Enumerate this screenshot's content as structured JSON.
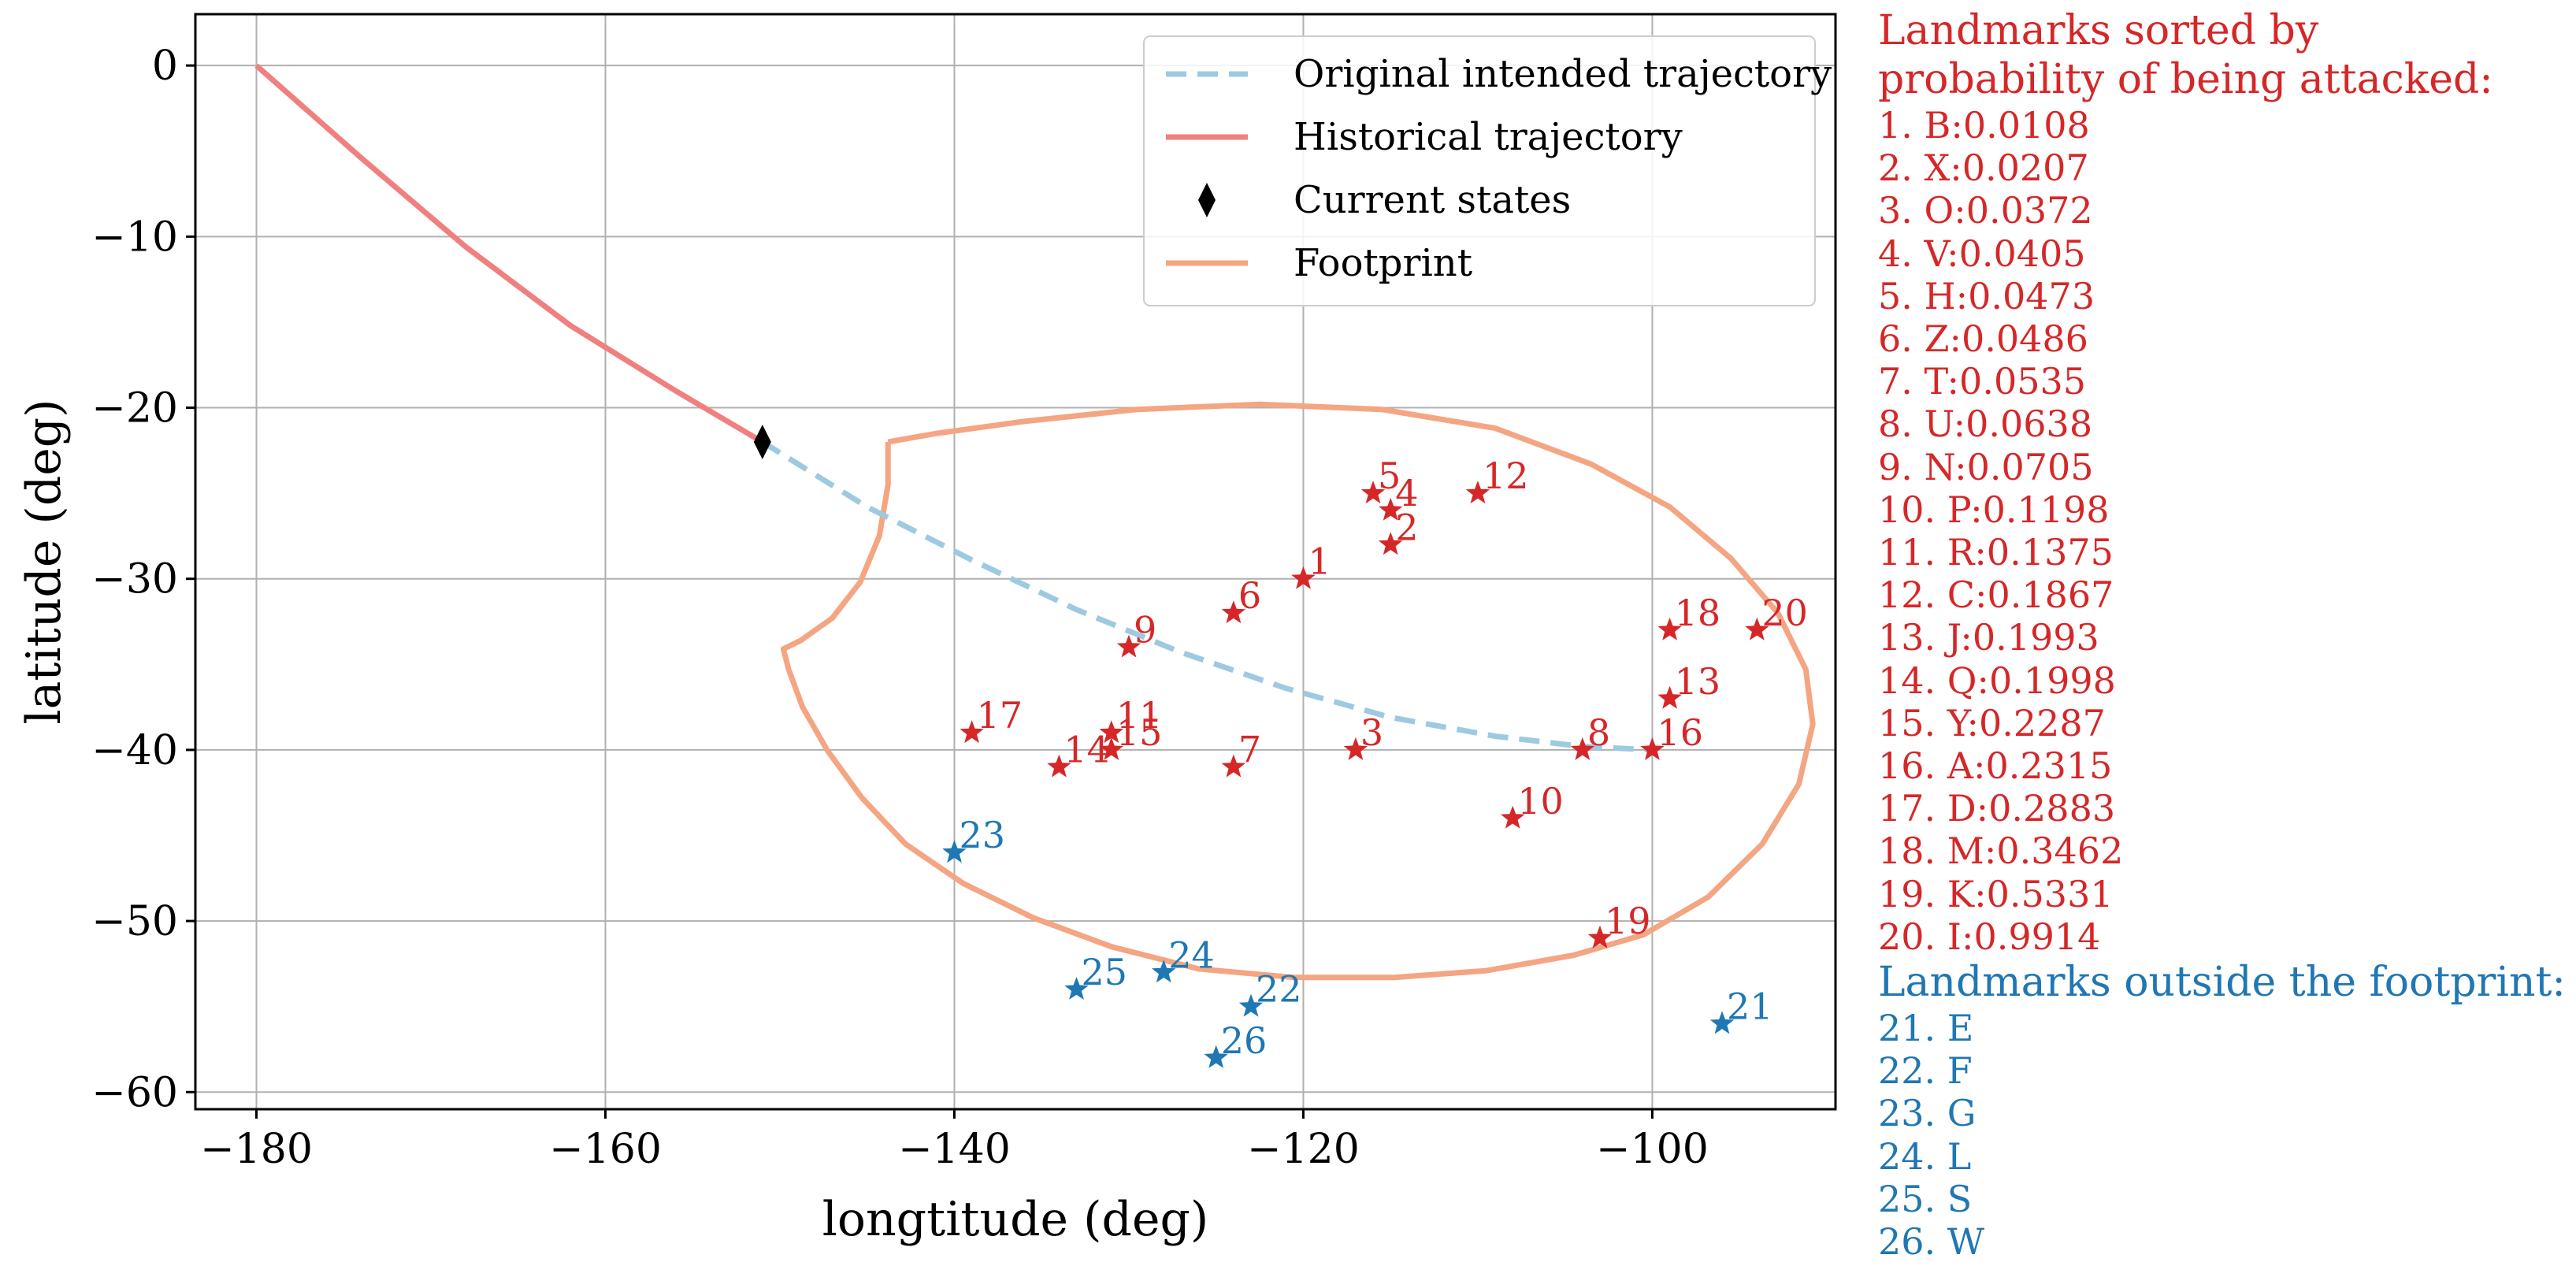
{
  "colors": {
    "inside": "#d62728",
    "outside": "#1f77b4",
    "intended": "#9ecae1",
    "historical": "#f08080",
    "footprint": "#f4a582",
    "current": "#000000",
    "grid": "#b0b0b0"
  },
  "chart_data": {
    "type": "scatter",
    "xlabel": "longtitude (deg)",
    "ylabel": "latitude (deg)",
    "xlim": [
      -183.5,
      -89.5
    ],
    "ylim": [
      -61,
      3
    ],
    "xticks": [
      -180,
      -160,
      -140,
      -120,
      -100
    ],
    "yticks": [
      0,
      -10,
      -20,
      -30,
      -40,
      -50,
      -60
    ],
    "grid": true,
    "legend_position": "top-right",
    "legend": [
      {
        "label": "Original intended trajectory",
        "style": "dashed-line",
        "color": "#9ecae1"
      },
      {
        "label": "Historical trajectory",
        "style": "solid-line",
        "color": "#f08080"
      },
      {
        "label": "Current states",
        "style": "diamond-marker",
        "color": "#000000"
      },
      {
        "label": "Footprint",
        "style": "solid-line",
        "color": "#f4a582"
      }
    ],
    "historical_trajectory": [
      [
        -180,
        0
      ],
      [
        -174,
        -5.4
      ],
      [
        -168,
        -10.6
      ],
      [
        -162,
        -15.2
      ],
      [
        -156,
        -19.0
      ],
      [
        -151,
        -22.0
      ]
    ],
    "intended_trajectory": [
      [
        -151,
        -22.0
      ],
      [
        -145,
        -25.8
      ],
      [
        -139,
        -28.9
      ],
      [
        -133,
        -31.8
      ],
      [
        -127,
        -34.3
      ],
      [
        -121,
        -36.4
      ],
      [
        -115,
        -38.1
      ],
      [
        -109,
        -39.2
      ],
      [
        -104,
        -39.8
      ],
      [
        -100,
        -40.0
      ]
    ],
    "current_state": [
      -151,
      -22.0
    ],
    "footprint": [
      [
        -143.8,
        -22.0
      ],
      [
        -143.8,
        -24.5
      ],
      [
        -144.3,
        -27.5
      ],
      [
        -145.4,
        -30.2
      ],
      [
        -147.0,
        -32.3
      ],
      [
        -148.8,
        -33.6
      ],
      [
        -149.8,
        -34.1
      ],
      [
        -149.5,
        -35.3
      ],
      [
        -148.7,
        -37.5
      ],
      [
        -147.3,
        -40.0
      ],
      [
        -145.3,
        -42.8
      ],
      [
        -142.8,
        -45.5
      ],
      [
        -139.5,
        -47.8
      ],
      [
        -135.5,
        -49.8
      ],
      [
        -131.0,
        -51.5
      ],
      [
        -126.0,
        -52.8
      ],
      [
        -120.5,
        -53.3
      ],
      [
        -114.8,
        -53.3
      ],
      [
        -109.5,
        -52.9
      ],
      [
        -104.5,
        -52.0
      ],
      [
        -100.5,
        -50.8
      ],
      [
        -96.8,
        -48.6
      ],
      [
        -93.7,
        -45.5
      ],
      [
        -91.6,
        -42.0
      ],
      [
        -90.8,
        -38.5
      ],
      [
        -91.2,
        -35.3
      ],
      [
        -92.8,
        -32.0
      ],
      [
        -95.5,
        -28.8
      ],
      [
        -99.0,
        -25.8
      ],
      [
        -103.5,
        -23.3
      ],
      [
        -109.0,
        -21.2
      ],
      [
        -115.5,
        -20.1
      ],
      [
        -122.5,
        -19.8
      ],
      [
        -129.5,
        -20.1
      ],
      [
        -136.0,
        -20.8
      ],
      [
        -141.0,
        -21.5
      ],
      [
        -143.8,
        -22.0
      ]
    ],
    "landmarks": [
      {
        "n": 1,
        "x": -120.0,
        "y": -30.0,
        "group": "inside"
      },
      {
        "n": 2,
        "x": -115.0,
        "y": -28.0,
        "group": "inside"
      },
      {
        "n": 3,
        "x": -117.0,
        "y": -40.0,
        "group": "inside"
      },
      {
        "n": 4,
        "x": -115.0,
        "y": -26.0,
        "group": "inside"
      },
      {
        "n": 5,
        "x": -116.0,
        "y": -25.0,
        "group": "inside"
      },
      {
        "n": 6,
        "x": -124.0,
        "y": -32.0,
        "group": "inside"
      },
      {
        "n": 7,
        "x": -124.0,
        "y": -41.0,
        "group": "inside"
      },
      {
        "n": 8,
        "x": -104.0,
        "y": -40.0,
        "group": "inside"
      },
      {
        "n": 9,
        "x": -130.0,
        "y": -34.0,
        "group": "inside"
      },
      {
        "n": 10,
        "x": -108.0,
        "y": -44.0,
        "group": "inside"
      },
      {
        "n": 11,
        "x": -131.0,
        "y": -39.0,
        "group": "inside"
      },
      {
        "n": 12,
        "x": -110.0,
        "y": -25.0,
        "group": "inside"
      },
      {
        "n": 13,
        "x": -99.0,
        "y": -37.0,
        "group": "inside"
      },
      {
        "n": 14,
        "x": -134.0,
        "y": -41.0,
        "group": "inside"
      },
      {
        "n": 15,
        "x": -131.0,
        "y": -40.0,
        "group": "inside"
      },
      {
        "n": 16,
        "x": -100.0,
        "y": -40.0,
        "group": "inside"
      },
      {
        "n": 17,
        "x": -139.0,
        "y": -39.0,
        "group": "inside"
      },
      {
        "n": 18,
        "x": -99.0,
        "y": -33.0,
        "group": "inside"
      },
      {
        "n": 19,
        "x": -103.0,
        "y": -51.0,
        "group": "inside"
      },
      {
        "n": 20,
        "x": -94.0,
        "y": -33.0,
        "group": "inside"
      },
      {
        "n": 21,
        "x": -96.0,
        "y": -56.0,
        "group": "outside"
      },
      {
        "n": 22,
        "x": -123.0,
        "y": -55.0,
        "group": "outside"
      },
      {
        "n": 23,
        "x": -140.0,
        "y": -46.0,
        "group": "outside"
      },
      {
        "n": 24,
        "x": -128.0,
        "y": -53.0,
        "group": "outside"
      },
      {
        "n": 25,
        "x": -133.0,
        "y": -54.0,
        "group": "outside"
      },
      {
        "n": 26,
        "x": -125.0,
        "y": -58.0,
        "group": "outside"
      }
    ]
  },
  "side_panel": {
    "inside_heading_line1": "Landmarks sorted by",
    "inside_heading_line2": "probability of being attacked:",
    "inside_items": [
      "1. B:0.0108",
      "2. X:0.0207",
      "3. O:0.0372",
      "4. V:0.0405",
      "5. H:0.0473",
      "6. Z:0.0486",
      "7. T:0.0535",
      "8. U:0.0638",
      "9. N:0.0705",
      "10. P:0.1198",
      "11. R:0.1375",
      "12. C:0.1867",
      "13. J:0.1993",
      "14. Q:0.1998",
      "15. Y:0.2287",
      "16. A:0.2315",
      "17. D:0.2883",
      "18. M:0.3462",
      "19. K:0.5331",
      "20. I:0.9914"
    ],
    "outside_heading": "Landmarks outside the footprint:",
    "outside_items": [
      "21. E",
      "22. F",
      "23. G",
      "24. L",
      "25. S",
      "26. W"
    ]
  }
}
